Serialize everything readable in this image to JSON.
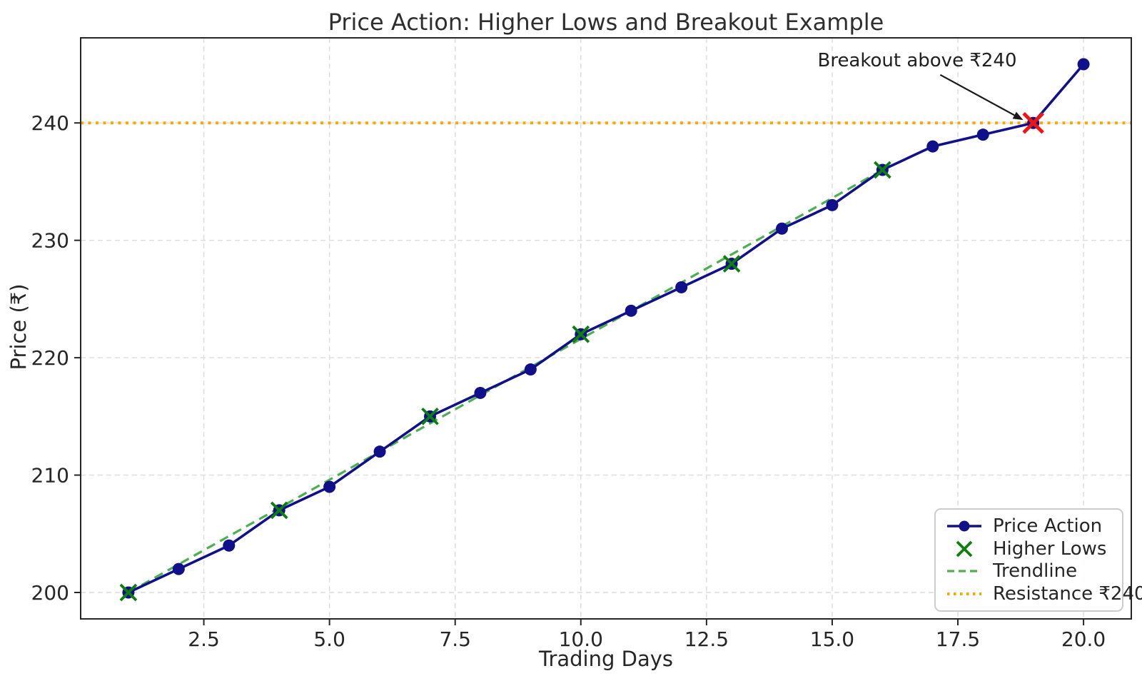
{
  "colors": {
    "background": "#ffffff",
    "grid": "#dcdcdc",
    "spine": "#262626",
    "text": "#262626",
    "price_action": "#10108a",
    "higher_lows": "#0d7f0d",
    "trendline": "#4caf50",
    "resistance": "#ffa500",
    "breakout": "#f21414",
    "annotation_arrow": "#1a1a1a"
  },
  "chart_data": {
    "type": "line",
    "title": "Price Action: Higher Lows and Breakout Example",
    "xlabel": "Trading Days",
    "ylabel": "Price (₹)",
    "xlim": [
      0.05,
      20.95
    ],
    "ylim": [
      197.75,
      247.25
    ],
    "xticks": [
      2.5,
      5.0,
      7.5,
      10.0,
      12.5,
      15.0,
      17.5,
      20.0
    ],
    "xtick_labels": [
      "2.5",
      "5.0",
      "7.5",
      "10.0",
      "12.5",
      "15.0",
      "17.5",
      "20.0"
    ],
    "yticks": [
      200,
      210,
      220,
      230,
      240
    ],
    "ytick_labels": [
      "200",
      "210",
      "220",
      "230",
      "240"
    ],
    "grid": true,
    "series": [
      {
        "name": "Price Action",
        "kind": "line-marker",
        "marker": "circle",
        "color": "#10108a",
        "x": [
          1,
          2,
          3,
          4,
          5,
          6,
          7,
          8,
          9,
          10,
          11,
          12,
          13,
          14,
          15,
          16,
          17,
          18,
          19,
          20
        ],
        "y": [
          200,
          202,
          204,
          207,
          209,
          212,
          215,
          217,
          219,
          222,
          224,
          226,
          228,
          231,
          233,
          236,
          238,
          239,
          240,
          245
        ]
      },
      {
        "name": "Higher Lows",
        "kind": "scatter",
        "marker": "x",
        "color": "#0d7f0d",
        "x": [
          1,
          4,
          7,
          10,
          13,
          16
        ],
        "y": [
          200,
          207,
          215,
          222,
          228,
          236
        ]
      },
      {
        "name": "Trendline",
        "kind": "line",
        "style": "dashed",
        "color": "#4caf50",
        "x": [
          1,
          16
        ],
        "y": [
          200,
          236
        ]
      },
      {
        "name": "Resistance ₹240",
        "kind": "hline",
        "style": "dotted",
        "color": "#ffa500",
        "y": 240
      },
      {
        "name": "Breakout point",
        "kind": "scatter",
        "marker": "x",
        "color": "#f21414",
        "x": [
          19
        ],
        "y": [
          240
        ]
      }
    ],
    "legend": {
      "position": "lower right",
      "entries": [
        {
          "label": "Price Action",
          "marker": "line-circle",
          "color": "#10108a"
        },
        {
          "label": "Higher Lows",
          "marker": "x",
          "color": "#0d7f0d"
        },
        {
          "label": "Trendline",
          "marker": "dashed-line",
          "color": "#4caf50"
        },
        {
          "label": "Resistance ₹240",
          "marker": "dotted-line",
          "color": "#ffa500"
        }
      ]
    },
    "annotation": {
      "text": "Breakout above ₹240",
      "points_to": [
        19,
        240
      ],
      "text_center": [
        16.66,
        245.2
      ],
      "arrow_start": [
        17.15,
        244.1
      ],
      "arrow_end": [
        18.8,
        240.25
      ]
    }
  }
}
